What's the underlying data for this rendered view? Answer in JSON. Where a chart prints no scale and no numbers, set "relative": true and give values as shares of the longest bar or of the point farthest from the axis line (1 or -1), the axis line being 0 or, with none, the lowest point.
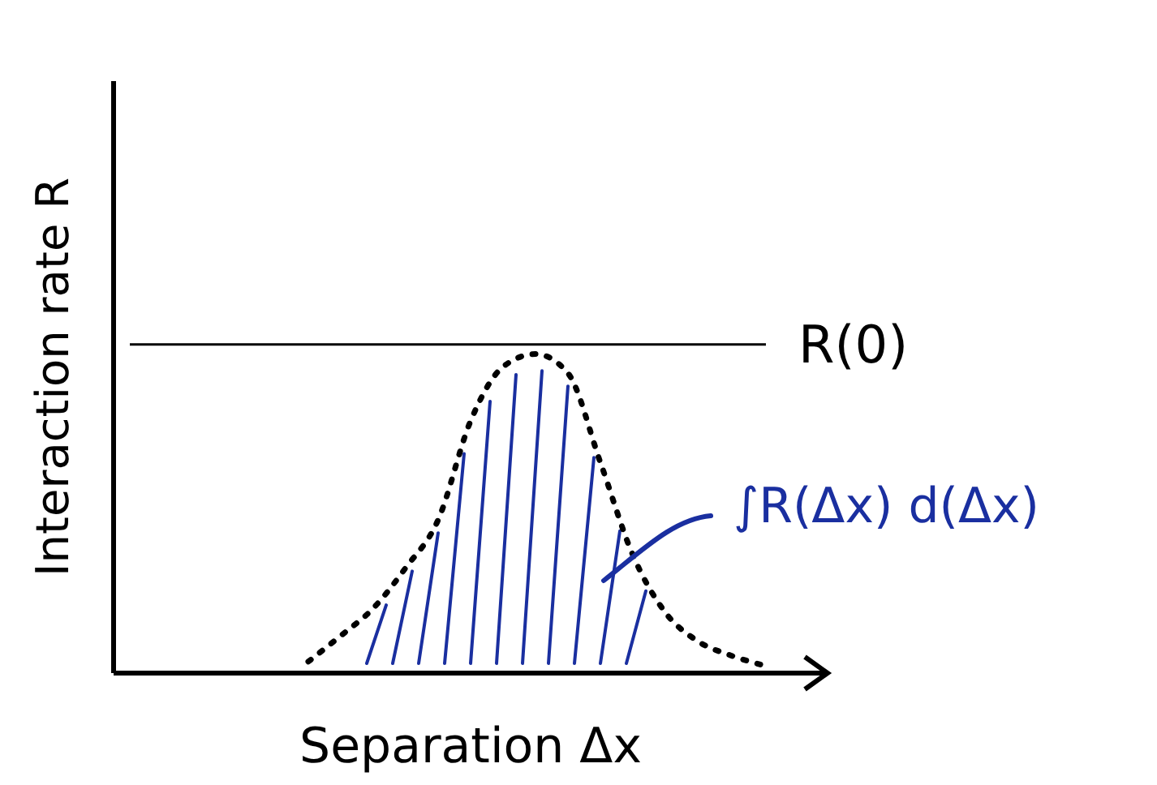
{
  "chart_data": {
    "type": "line",
    "relative": true,
    "xlabel": "Separation Δx",
    "ylabel": "Interaction rate R",
    "categories": [
      null,
      null,
      null,
      null,
      null,
      null,
      null,
      null,
      null,
      null,
      null,
      null,
      null,
      null,
      null,
      null,
      null,
      null,
      null,
      null,
      null,
      null,
      null
    ],
    "series": [
      {
        "color": "#000000",
        "marker": "none",
        "values": [
          null,
          null,
          null,
          null,
          null,
          null,
          0.036,
          0.117,
          0.203,
          0.33,
          0.48,
          0.79,
          0.96,
          1.0,
          0.94,
          0.66,
          0.37,
          0.19,
          0.1,
          0.056,
          0.025,
          null,
          null
        ]
      }
    ],
    "ref_lines": [
      {
        "axis": "y",
        "value": 1.03,
        "label": "R(0)",
        "color": "#000000",
        "line_style": "solid"
      }
    ],
    "annotations": [
      {
        "text": "∫R(Δx) d(Δx)"
      }
    ],
    "line_style": "dotted"
  }
}
